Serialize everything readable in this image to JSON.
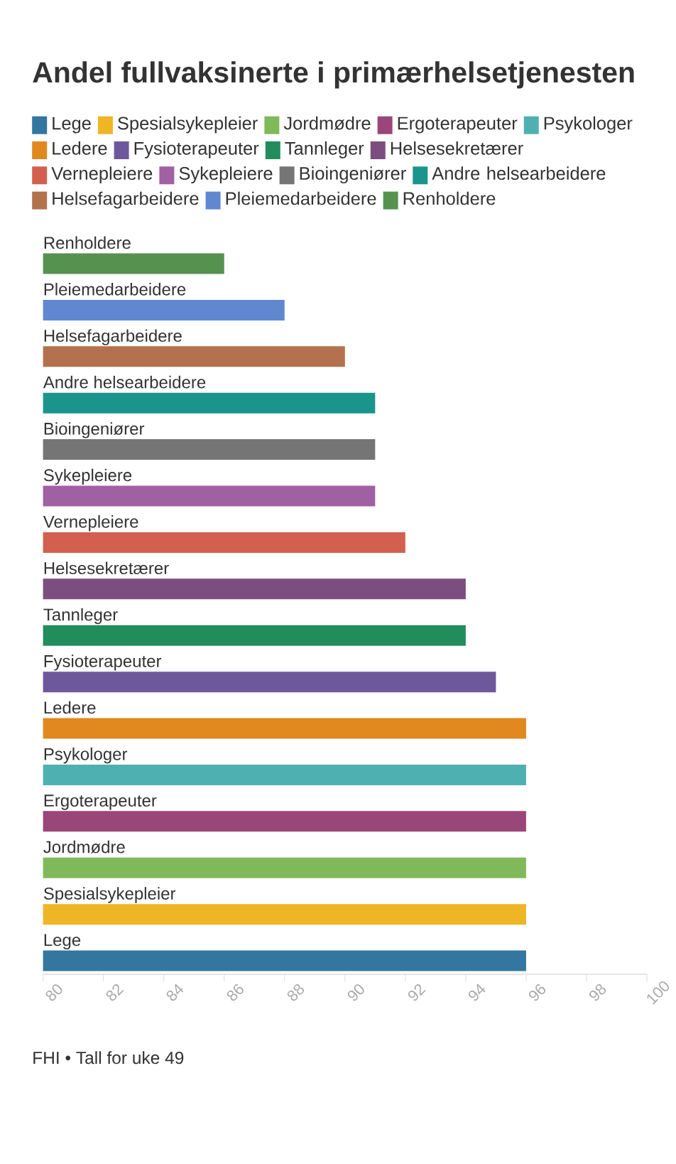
{
  "chart_data": {
    "type": "bar",
    "orientation": "horizontal",
    "title": "Andel fullvaksinerte i primærhelsetjenesten",
    "categories": [
      "Renholdere",
      "Pleiemedarbeidere",
      "Helsefagarbeidere",
      "Andre helsearbeidere",
      "Bioingeniører",
      "Sykepleiere",
      "Vernepleiere",
      "Helsesekretærer",
      "Tannleger",
      "Fysioterapeuter",
      "Ledere",
      "Psykologer",
      "Ergoterapeuter",
      "Jordmødre",
      "Spesialsykepleier",
      "Lege"
    ],
    "series": [
      {
        "name": "Lege",
        "color": "#33769f",
        "values": [
          null,
          null,
          null,
          null,
          null,
          null,
          null,
          null,
          null,
          null,
          null,
          null,
          null,
          null,
          null,
          96
        ]
      },
      {
        "name": "Spesialsykepleier",
        "color": "#eeb525",
        "values": [
          null,
          null,
          null,
          null,
          null,
          null,
          null,
          null,
          null,
          null,
          null,
          null,
          null,
          null,
          96,
          null
        ]
      },
      {
        "name": "Jordmødre",
        "color": "#80b95a",
        "values": [
          null,
          null,
          null,
          null,
          null,
          null,
          null,
          null,
          null,
          null,
          null,
          null,
          null,
          96,
          null,
          null
        ]
      },
      {
        "name": "Ergoterapeuter",
        "color": "#9b4679",
        "values": [
          null,
          null,
          null,
          null,
          null,
          null,
          null,
          null,
          null,
          null,
          null,
          null,
          96,
          null,
          null,
          null
        ]
      },
      {
        "name": "Psykologer",
        "color": "#4fb0b1",
        "values": [
          null,
          null,
          null,
          null,
          null,
          null,
          null,
          null,
          null,
          null,
          null,
          96,
          null,
          null,
          null,
          null
        ]
      },
      {
        "name": "Ledere",
        "color": "#e1891f",
        "values": [
          null,
          null,
          null,
          null,
          null,
          null,
          null,
          null,
          null,
          null,
          96,
          null,
          null,
          null,
          null,
          null
        ]
      },
      {
        "name": "Fysioterapeuter",
        "color": "#6e589c",
        "values": [
          null,
          null,
          null,
          null,
          null,
          null,
          null,
          null,
          null,
          95,
          null,
          null,
          null,
          null,
          null,
          null
        ]
      },
      {
        "name": "Tannleger",
        "color": "#228c5d",
        "values": [
          null,
          null,
          null,
          null,
          null,
          null,
          null,
          null,
          94,
          null,
          null,
          null,
          null,
          null,
          null,
          null
        ]
      },
      {
        "name": "Helsesekretærer",
        "color": "#7b4e7f",
        "values": [
          null,
          null,
          null,
          null,
          null,
          null,
          null,
          94,
          null,
          null,
          null,
          null,
          null,
          null,
          null,
          null
        ]
      },
      {
        "name": "Vernepleiere",
        "color": "#d3604e",
        "values": [
          null,
          null,
          null,
          null,
          null,
          null,
          92,
          null,
          null,
          null,
          null,
          null,
          null,
          null,
          null,
          null
        ]
      },
      {
        "name": "Sykepleiere",
        "color": "#a160a2",
        "values": [
          null,
          null,
          null,
          null,
          null,
          91,
          null,
          null,
          null,
          null,
          null,
          null,
          null,
          null,
          null,
          null
        ]
      },
      {
        "name": "Bioingeniører",
        "color": "#757575",
        "values": [
          null,
          null,
          null,
          null,
          91,
          null,
          null,
          null,
          null,
          null,
          null,
          null,
          null,
          null,
          null,
          null
        ]
      },
      {
        "name": "Andre helsearbeidere",
        "color": "#1b958c",
        "values": [
          null,
          null,
          null,
          91,
          null,
          null,
          null,
          null,
          null,
          null,
          null,
          null,
          null,
          null,
          null,
          null
        ]
      },
      {
        "name": "Helsefagarbeidere",
        "color": "#b3724d",
        "values": [
          null,
          null,
          90,
          null,
          null,
          null,
          null,
          null,
          null,
          null,
          null,
          null,
          null,
          null,
          null,
          null
        ]
      },
      {
        "name": "Pleiemedarbeidere",
        "color": "#5f88d1",
        "values": [
          null,
          88,
          null,
          null,
          null,
          null,
          null,
          null,
          null,
          null,
          null,
          null,
          null,
          null,
          null,
          null
        ]
      },
      {
        "name": "Renholdere",
        "color": "#55924f",
        "values": [
          86,
          null,
          null,
          null,
          null,
          null,
          null,
          null,
          null,
          null,
          null,
          null,
          null,
          null,
          null,
          null
        ]
      }
    ],
    "xlim": [
      80,
      100
    ],
    "xticks": [
      80,
      82,
      84,
      86,
      88,
      90,
      92,
      94,
      96,
      98,
      100
    ],
    "legend": "top",
    "annotations": [
      "FHI • Tall for uke 49"
    ]
  }
}
